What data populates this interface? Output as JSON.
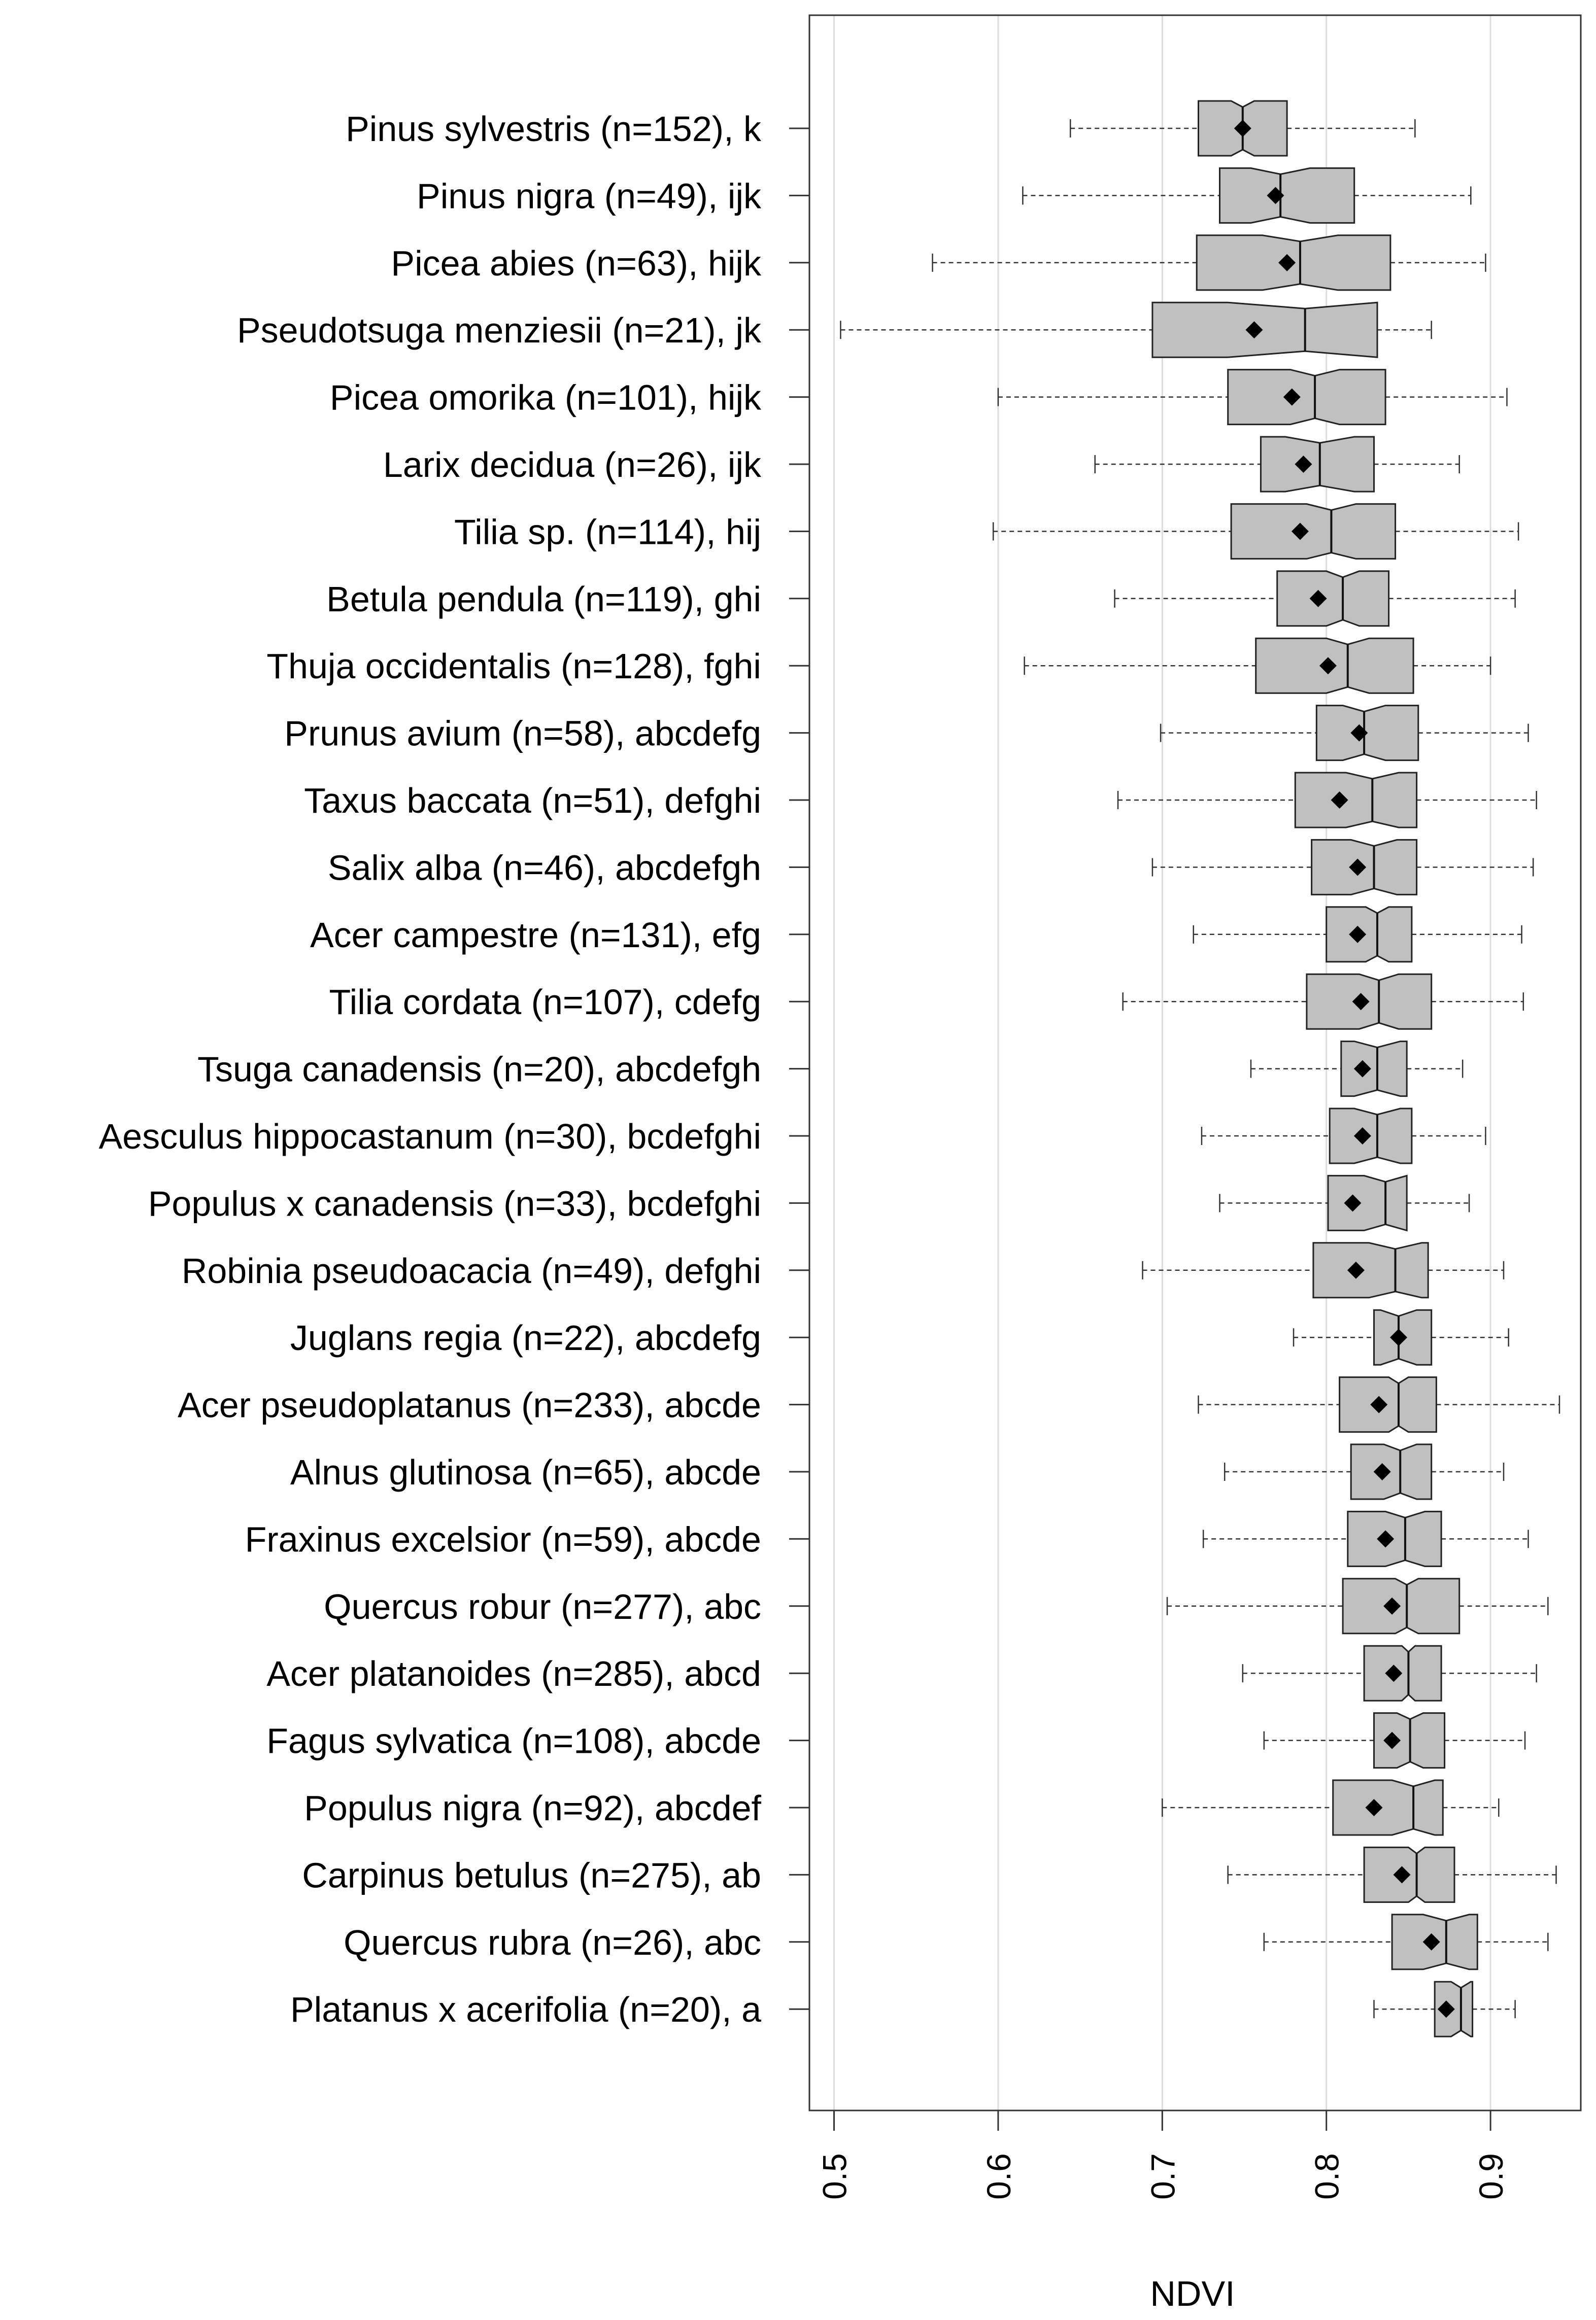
{
  "chart_data": {
    "type": "boxplot",
    "orientation": "horizontal",
    "title": "",
    "xlabel": "NDVI",
    "ylabel": "",
    "xlim": [
      0.485,
      0.955
    ],
    "xticks": [
      0.5,
      0.6,
      0.7,
      0.8,
      0.9
    ],
    "xtick_labels": [
      "0.5",
      "0.6",
      "0.7",
      "0.8",
      "0.9"
    ],
    "grid": "vertical",
    "notched": true,
    "mean_marker": "diamond",
    "box_color": "#c0c0c0",
    "series": [
      {
        "label": "Pinus sylvestris (n=152), k",
        "whisker_low": 0.644,
        "q1": 0.722,
        "median": 0.749,
        "q3": 0.776,
        "whisker_high": 0.854,
        "mean": 0.749,
        "notch": [
          0.742,
          0.756
        ]
      },
      {
        "label": "Pinus nigra (n=49), ijk",
        "whisker_low": 0.615,
        "q1": 0.735,
        "median": 0.772,
        "q3": 0.817,
        "whisker_high": 0.888,
        "mean": 0.769,
        "notch": [
          0.754,
          0.79
        ]
      },
      {
        "label": "Picea abies (n=63), hijk",
        "whisker_low": 0.56,
        "q1": 0.721,
        "median": 0.784,
        "q3": 0.839,
        "whisker_high": 0.897,
        "mean": 0.776,
        "notch": [
          0.761,
          0.807
        ]
      },
      {
        "label": "Pseudotsuga menziesii (n=21), jk",
        "whisker_low": 0.504,
        "q1": 0.694,
        "median": 0.787,
        "q3": 0.831,
        "whisker_high": 0.864,
        "mean": 0.756,
        "notch": [
          0.74,
          0.834
        ]
      },
      {
        "label": "Picea omorika (n=101), hijk",
        "whisker_low": 0.6,
        "q1": 0.74,
        "median": 0.793,
        "q3": 0.836,
        "whisker_high": 0.91,
        "mean": 0.779,
        "notch": [
          0.778,
          0.808
        ]
      },
      {
        "label": "Larix decidua (n=26), ijk",
        "whisker_low": 0.659,
        "q1": 0.76,
        "median": 0.796,
        "q3": 0.829,
        "whisker_high": 0.881,
        "mean": 0.786,
        "notch": [
          0.775,
          0.817
        ]
      },
      {
        "label": "Tilia sp. (n=114), hij",
        "whisker_low": 0.597,
        "q1": 0.742,
        "median": 0.803,
        "q3": 0.842,
        "whisker_high": 0.917,
        "mean": 0.784,
        "notch": [
          0.788,
          0.818
        ]
      },
      {
        "label": "Betula pendula (n=119), ghi",
        "whisker_low": 0.671,
        "q1": 0.77,
        "median": 0.81,
        "q3": 0.838,
        "whisker_high": 0.915,
        "mean": 0.795,
        "notch": [
          0.8,
          0.82
        ]
      },
      {
        "label": "Thuja occidentalis (n=128), fghi",
        "whisker_low": 0.616,
        "q1": 0.757,
        "median": 0.813,
        "q3": 0.853,
        "whisker_high": 0.9,
        "mean": 0.801,
        "notch": [
          0.8,
          0.826
        ]
      },
      {
        "label": "Prunus avium (n=58), abcdefg",
        "whisker_low": 0.699,
        "q1": 0.794,
        "median": 0.823,
        "q3": 0.856,
        "whisker_high": 0.923,
        "mean": 0.82,
        "notch": [
          0.81,
          0.836
        ]
      },
      {
        "label": "Taxus baccata (n=51), defghi",
        "whisker_low": 0.673,
        "q1": 0.781,
        "median": 0.828,
        "q3": 0.855,
        "whisker_high": 0.928,
        "mean": 0.808,
        "notch": [
          0.812,
          0.844
        ]
      },
      {
        "label": "Salix alba (n=46), abcdefgh",
        "whisker_low": 0.694,
        "q1": 0.791,
        "median": 0.829,
        "q3": 0.855,
        "whisker_high": 0.926,
        "mean": 0.819,
        "notch": [
          0.815,
          0.843
        ]
      },
      {
        "label": "Acer campestre (n=131), efg",
        "whisker_low": 0.719,
        "q1": 0.8,
        "median": 0.831,
        "q3": 0.852,
        "whisker_high": 0.919,
        "mean": 0.819,
        "notch": [
          0.824,
          0.838
        ]
      },
      {
        "label": "Tilia cordata (n=107), cdefg",
        "whisker_low": 0.676,
        "q1": 0.788,
        "median": 0.832,
        "q3": 0.864,
        "whisker_high": 0.92,
        "mean": 0.821,
        "notch": [
          0.82,
          0.844
        ]
      },
      {
        "label": "Tsuga canadensis (n=20), abcdefgh",
        "whisker_low": 0.754,
        "q1": 0.809,
        "median": 0.831,
        "q3": 0.849,
        "whisker_high": 0.883,
        "mean": 0.822,
        "notch": [
          0.817,
          0.845
        ]
      },
      {
        "label": "Aesculus hippocastanum (n=30), bcdefghi",
        "whisker_low": 0.724,
        "q1": 0.802,
        "median": 0.831,
        "q3": 0.852,
        "whisker_high": 0.897,
        "mean": 0.822,
        "notch": [
          0.817,
          0.845
        ]
      },
      {
        "label": "Populus x canadensis (n=33), bcdefghi",
        "whisker_low": 0.735,
        "q1": 0.801,
        "median": 0.836,
        "q3": 0.849,
        "whisker_high": 0.887,
        "mean": 0.816,
        "notch": [
          0.823,
          0.849
        ]
      },
      {
        "label": "Robinia pseudoacacia (n=49), defghi",
        "whisker_low": 0.688,
        "q1": 0.792,
        "median": 0.842,
        "q3": 0.862,
        "whisker_high": 0.908,
        "mean": 0.818,
        "notch": [
          0.826,
          0.858
        ]
      },
      {
        "label": "Juglans regia (n=22), abcdefg",
        "whisker_low": 0.78,
        "q1": 0.829,
        "median": 0.844,
        "q3": 0.864,
        "whisker_high": 0.911,
        "mean": 0.844,
        "notch": [
          0.833,
          0.855
        ]
      },
      {
        "label": "Acer pseudoplatanus (n=233), abcde",
        "whisker_low": 0.722,
        "q1": 0.808,
        "median": 0.844,
        "q3": 0.867,
        "whisker_high": 0.942,
        "mean": 0.832,
        "notch": [
          0.838,
          0.85
        ]
      },
      {
        "label": "Alnus glutinosa (n=65), abcde",
        "whisker_low": 0.738,
        "q1": 0.815,
        "median": 0.845,
        "q3": 0.864,
        "whisker_high": 0.908,
        "mean": 0.834,
        "notch": [
          0.835,
          0.855
        ]
      },
      {
        "label": "Fraxinus excelsior (n=59), abcde",
        "whisker_low": 0.725,
        "q1": 0.813,
        "median": 0.848,
        "q3": 0.87,
        "whisker_high": 0.923,
        "mean": 0.836,
        "notch": [
          0.836,
          0.86
        ]
      },
      {
        "label": "Quercus robur (n=277), abc",
        "whisker_low": 0.703,
        "q1": 0.81,
        "median": 0.849,
        "q3": 0.881,
        "whisker_high": 0.935,
        "mean": 0.84,
        "notch": [
          0.842,
          0.856
        ]
      },
      {
        "label": "Acer platanoides (n=285), abcd",
        "whisker_low": 0.749,
        "q1": 0.823,
        "median": 0.85,
        "q3": 0.87,
        "whisker_high": 0.928,
        "mean": 0.841,
        "notch": [
          0.846,
          0.854
        ]
      },
      {
        "label": "Fagus sylvatica (n=108), abcde",
        "whisker_low": 0.762,
        "q1": 0.829,
        "median": 0.851,
        "q3": 0.872,
        "whisker_high": 0.921,
        "mean": 0.84,
        "notch": [
          0.843,
          0.859
        ]
      },
      {
        "label": "Populus nigra (n=92), abcdef",
        "whisker_low": 0.7,
        "q1": 0.804,
        "median": 0.853,
        "q3": 0.871,
        "whisker_high": 0.905,
        "mean": 0.829,
        "notch": [
          0.84,
          0.866
        ]
      },
      {
        "label": "Carpinus betulus (n=275), ab",
        "whisker_low": 0.74,
        "q1": 0.823,
        "median": 0.855,
        "q3": 0.878,
        "whisker_high": 0.94,
        "mean": 0.846,
        "notch": [
          0.85,
          0.86
        ]
      },
      {
        "label": "Quercus rubra (n=26), abc",
        "whisker_low": 0.762,
        "q1": 0.84,
        "median": 0.873,
        "q3": 0.892,
        "whisker_high": 0.935,
        "mean": 0.864,
        "notch": [
          0.859,
          0.887
        ]
      },
      {
        "label": "Platanus x acerifolia (n=20), a",
        "whisker_low": 0.829,
        "q1": 0.866,
        "median": 0.882,
        "q3": 0.889,
        "whisker_high": 0.915,
        "mean": 0.873,
        "notch": [
          0.876,
          0.888
        ]
      }
    ]
  }
}
